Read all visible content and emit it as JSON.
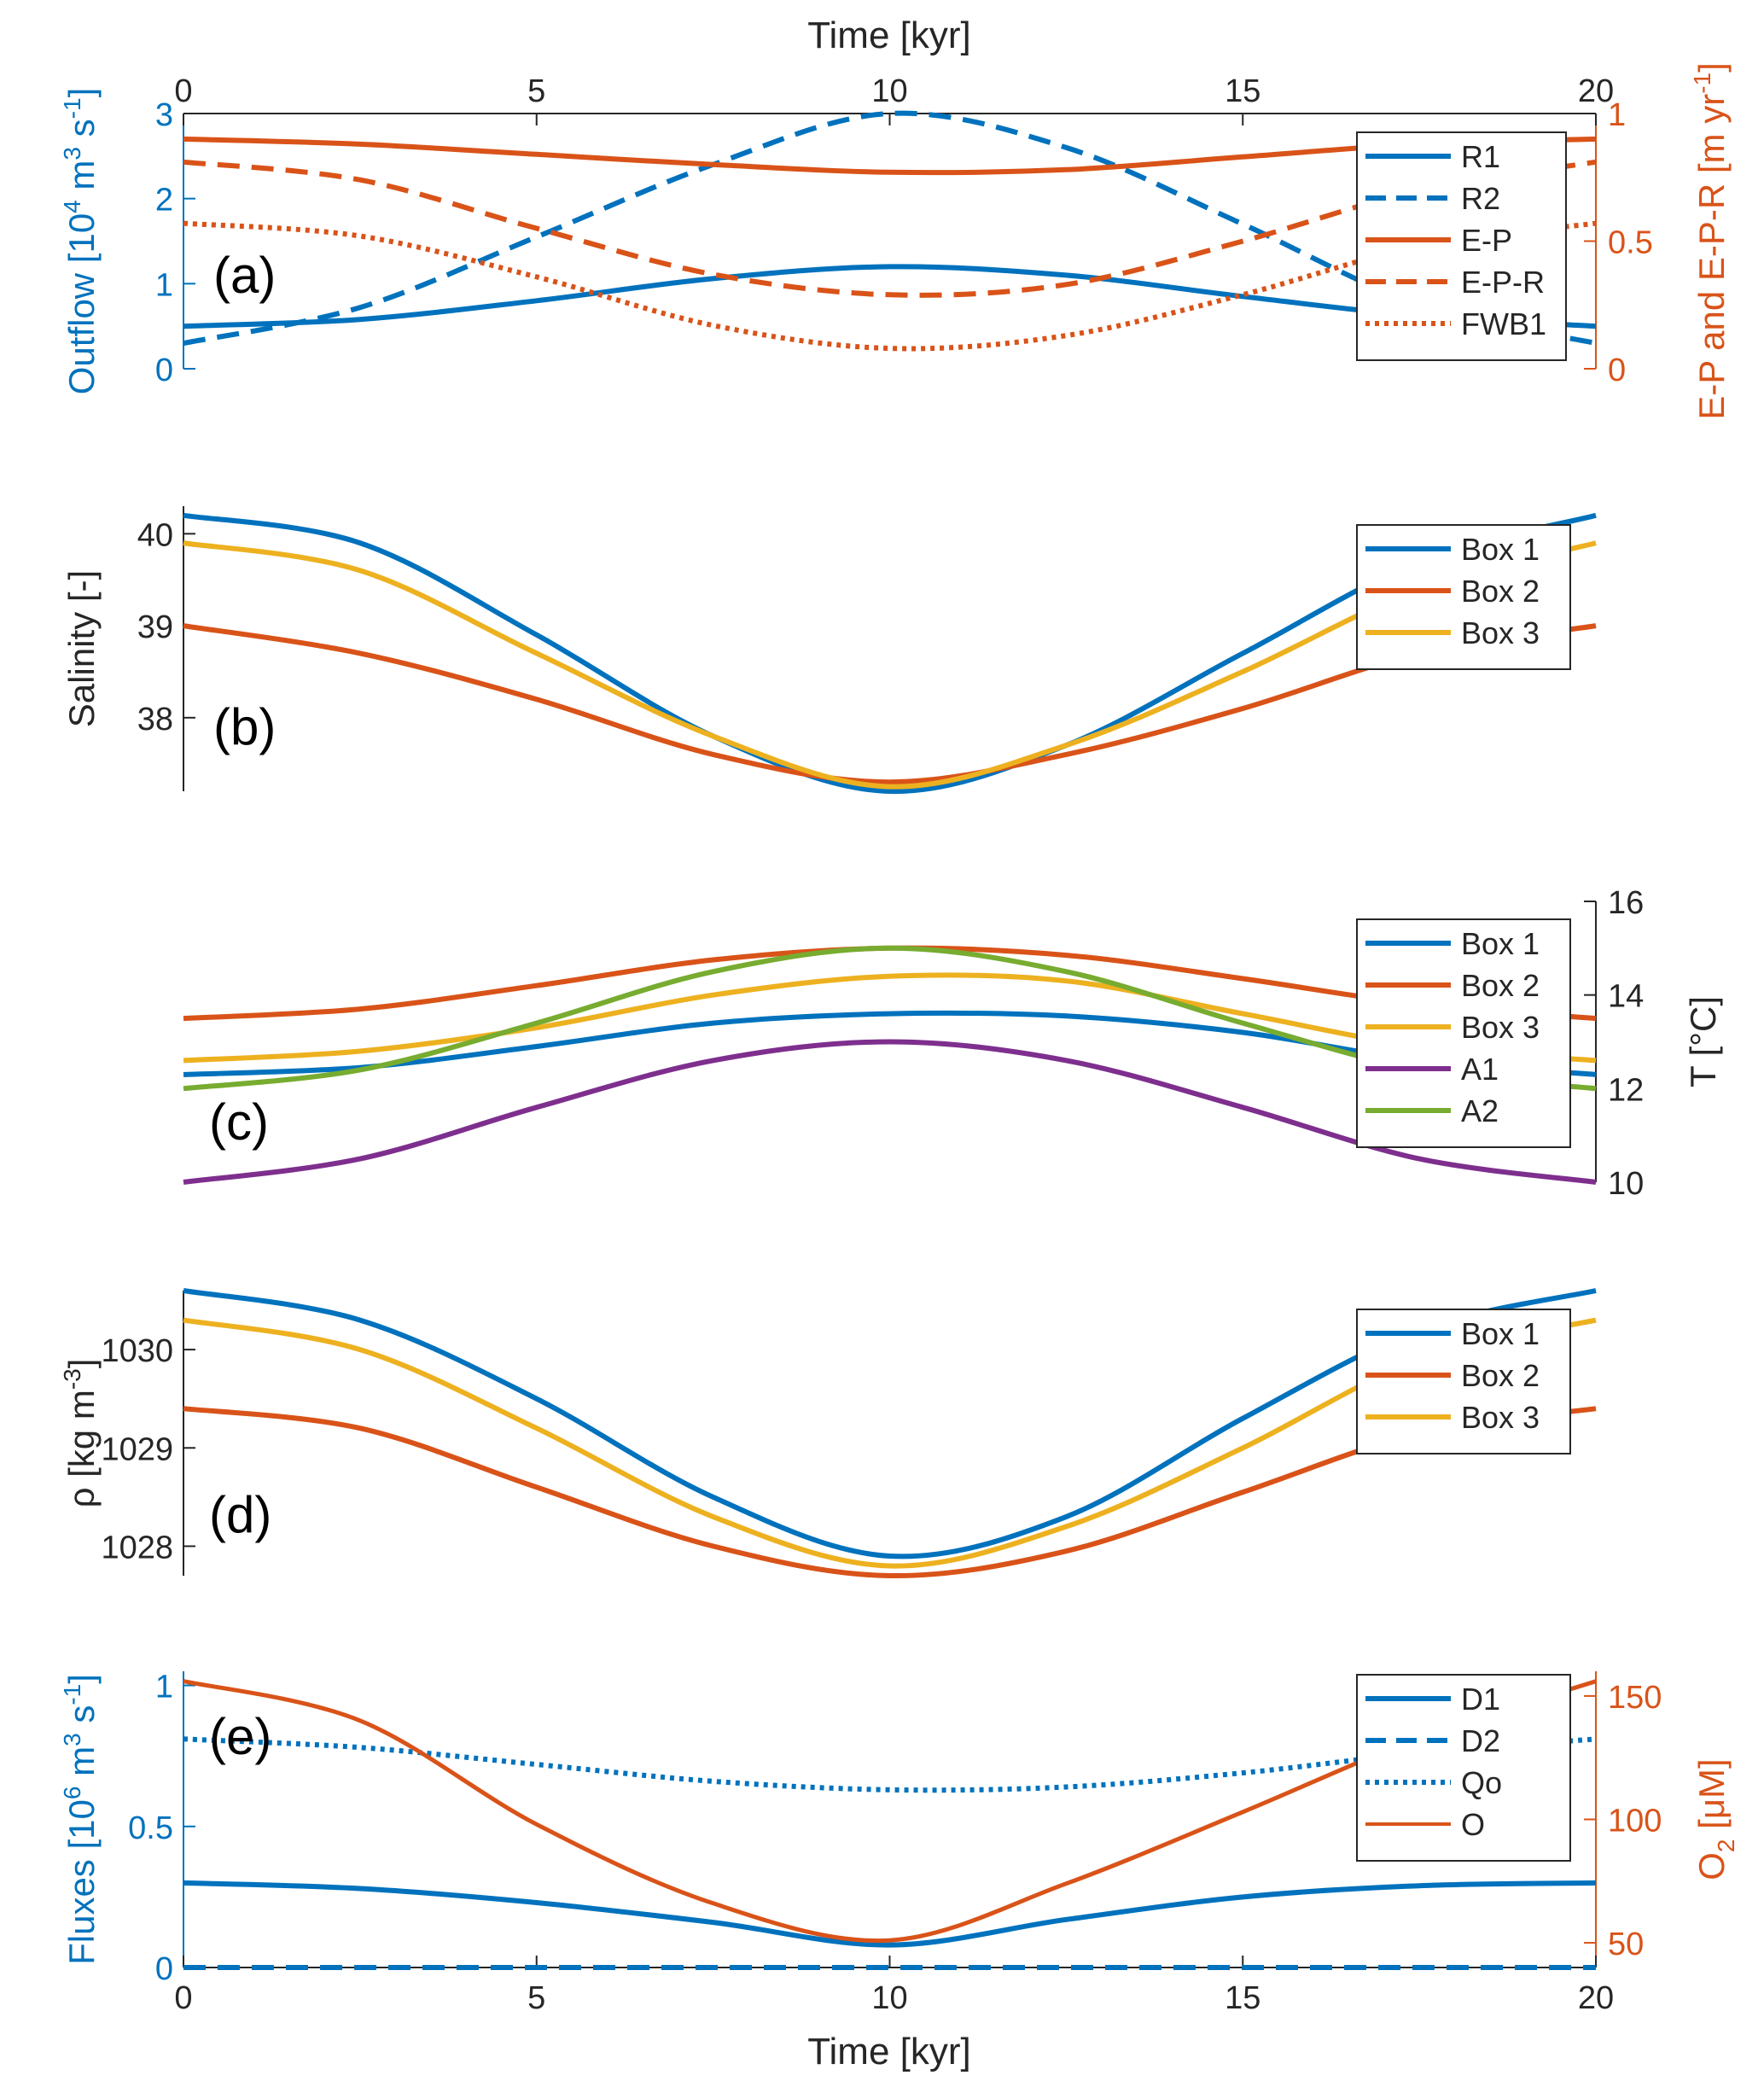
{
  "figure": {
    "top_xlabel": "Time [kyr]",
    "bottom_xlabel": "Time [kyr]",
    "x_ticks": [
      "0",
      "5",
      "10",
      "15",
      "20"
    ]
  },
  "chart_data": [
    {
      "panel": "a",
      "type": "line",
      "panel_label": "(a)",
      "xlabel": "Time [kyr]",
      "xlim": [
        0,
        20
      ],
      "ylabel": "Outflow [10^4 m^3 s^-1]",
      "ylabel_color": "#0072BD",
      "ylim": [
        0,
        3
      ],
      "yticks": [
        0,
        1,
        2,
        3
      ],
      "ylabel_right": "E-P and E-P-R [m yr^-1]",
      "ylabel_right_color": "#D95319",
      "ylim_right": [
        0,
        1
      ],
      "yticks_right": [
        0,
        0.5,
        1
      ],
      "legend": "top-right",
      "x": [
        0,
        2.5,
        5,
        7.5,
        10,
        12.5,
        15,
        17.5,
        20
      ],
      "series": [
        {
          "name": "R1",
          "axis": "left",
          "color": "#0072BD",
          "style": "solid",
          "values": [
            0.5,
            0.58,
            0.8,
            1.06,
            1.2,
            1.1,
            0.85,
            0.62,
            0.5
          ]
        },
        {
          "name": "R2",
          "axis": "left",
          "color": "#0072BD",
          "style": "dashed",
          "values": [
            0.3,
            0.72,
            1.55,
            2.4,
            3.0,
            2.6,
            1.7,
            0.75,
            0.3
          ]
        },
        {
          "name": "E-P",
          "axis": "right",
          "color": "#D95319",
          "style": "solid",
          "values": [
            0.9,
            0.88,
            0.84,
            0.8,
            0.77,
            0.78,
            0.83,
            0.88,
            0.9
          ]
        },
        {
          "name": "E-P-R",
          "axis": "right",
          "color": "#D95319",
          "style": "dashed",
          "values": [
            0.81,
            0.74,
            0.55,
            0.37,
            0.29,
            0.33,
            0.5,
            0.7,
            0.81
          ]
        },
        {
          "name": "FWB1",
          "axis": "right",
          "color": "#D95319",
          "style": "dotted",
          "values": [
            0.57,
            0.52,
            0.36,
            0.17,
            0.08,
            0.13,
            0.29,
            0.48,
            0.57
          ]
        }
      ]
    },
    {
      "panel": "b",
      "type": "line",
      "panel_label": "(b)",
      "xlabel": "",
      "xlim": [
        0,
        20
      ],
      "ylabel": "Salinity [-]",
      "ylim": [
        37.2,
        40.3
      ],
      "yticks": [
        38,
        39,
        40
      ],
      "legend": "top-right",
      "x": [
        0,
        2.5,
        5,
        7.5,
        10,
        12.5,
        15,
        17.5,
        20
      ],
      "series": [
        {
          "name": "Box 1",
          "color": "#0072BD",
          "style": "solid",
          "values": [
            40.2,
            39.9,
            38.9,
            37.8,
            37.2,
            37.7,
            38.7,
            39.7,
            40.2
          ]
        },
        {
          "name": "Box 2",
          "color": "#D95319",
          "style": "solid",
          "values": [
            39.0,
            38.7,
            38.2,
            37.6,
            37.3,
            37.6,
            38.1,
            38.7,
            39.0
          ]
        },
        {
          "name": "Box 3",
          "color": "#EDB120",
          "style": "solid",
          "values": [
            39.9,
            39.6,
            38.7,
            37.8,
            37.25,
            37.7,
            38.5,
            39.4,
            39.9
          ]
        }
      ]
    },
    {
      "panel": "c",
      "type": "line",
      "panel_label": "(c)",
      "xlabel": "",
      "xlim": [
        0,
        20
      ],
      "ylabel_right": "T [°C]",
      "ylim_right": [
        10,
        16
      ],
      "yticks_right": [
        10,
        12,
        14,
        16
      ],
      "legend": "top-right",
      "x": [
        0,
        2.5,
        5,
        7.5,
        10,
        12.5,
        15,
        17.5,
        20
      ],
      "series": [
        {
          "name": "Box 1",
          "color": "#0072BD",
          "style": "solid",
          "values": [
            12.3,
            12.45,
            12.9,
            13.4,
            13.6,
            13.55,
            13.2,
            12.6,
            12.3
          ]
        },
        {
          "name": "Box 2",
          "color": "#D95319",
          "style": "solid",
          "values": [
            13.5,
            13.7,
            14.2,
            14.75,
            15.0,
            14.85,
            14.35,
            13.8,
            13.5
          ]
        },
        {
          "name": "Box 3",
          "color": "#EDB120",
          "style": "solid",
          "values": [
            12.6,
            12.8,
            13.3,
            14.0,
            14.4,
            14.3,
            13.6,
            12.9,
            12.6
          ]
        },
        {
          "name": "A1",
          "color": "#7E2F8E",
          "style": "solid",
          "values": [
            10.0,
            10.5,
            11.6,
            12.6,
            13.0,
            12.6,
            11.6,
            10.5,
            10.0
          ]
        },
        {
          "name": "A2",
          "color": "#77AC30",
          "style": "solid",
          "values": [
            12.0,
            12.4,
            13.4,
            14.5,
            15.0,
            14.5,
            13.4,
            12.4,
            12.0
          ]
        }
      ]
    },
    {
      "panel": "d",
      "type": "line",
      "panel_label": "(d)",
      "xlabel": "",
      "xlim": [
        0,
        20
      ],
      "ylabel": "ρ [kg m^-3]",
      "ylim": [
        1027.7,
        1030.6
      ],
      "yticks": [
        1028,
        1029,
        1030
      ],
      "legend": "top-right",
      "x": [
        0,
        2.5,
        5,
        7.5,
        10,
        12.5,
        15,
        17.5,
        20
      ],
      "series": [
        {
          "name": "Box 1",
          "color": "#0072BD",
          "style": "solid",
          "values": [
            1030.6,
            1030.3,
            1029.5,
            1028.5,
            1027.9,
            1028.3,
            1029.3,
            1030.2,
            1030.6
          ]
        },
        {
          "name": "Box 2",
          "color": "#D95319",
          "style": "solid",
          "values": [
            1029.4,
            1029.2,
            1028.6,
            1028.0,
            1027.7,
            1027.95,
            1028.55,
            1029.15,
            1029.4
          ]
        },
        {
          "name": "Box 3",
          "color": "#EDB120",
          "style": "solid",
          "values": [
            1030.3,
            1030.0,
            1029.2,
            1028.3,
            1027.8,
            1028.2,
            1029.0,
            1029.9,
            1030.3
          ]
        }
      ]
    },
    {
      "panel": "e",
      "type": "line",
      "panel_label": "(e)",
      "xlabel": "Time [kyr]",
      "xlim": [
        0,
        20
      ],
      "ylabel": "Fluxes [10^6 m^3 s^-1]",
      "ylabel_color": "#0072BD",
      "ylim": [
        0,
        1.05
      ],
      "yticks": [
        0,
        0.5,
        1
      ],
      "ylabel_right": "O2 [μM]",
      "ylabel_right_color": "#D95319",
      "ylim_right": [
        40,
        160
      ],
      "yticks_right": [
        50,
        100,
        150
      ],
      "legend": "top-right",
      "x": [
        0,
        2.5,
        5,
        7.5,
        10,
        12.5,
        15,
        17.5,
        20
      ],
      "series": [
        {
          "name": "D1",
          "axis": "left",
          "color": "#0072BD",
          "style": "solid",
          "values": [
            0.3,
            0.28,
            0.23,
            0.16,
            0.08,
            0.17,
            0.25,
            0.29,
            0.3
          ]
        },
        {
          "name": "D2",
          "axis": "left",
          "color": "#0072BD",
          "style": "dashed",
          "values": [
            0.0,
            0.0,
            0.0,
            0.0,
            0.0,
            0.0,
            0.0,
            0.0,
            0.0
          ]
        },
        {
          "name": "Qo",
          "axis": "left",
          "color": "#0072BD",
          "style": "dotted",
          "values": [
            0.81,
            0.78,
            0.72,
            0.66,
            0.63,
            0.64,
            0.69,
            0.76,
            0.81
          ]
        },
        {
          "name": "O",
          "axis": "right",
          "color": "#D95319",
          "style": "solid",
          "values": [
            156,
            140,
            98,
            66,
            51,
            74,
            103,
            133,
            156
          ]
        }
      ]
    }
  ]
}
